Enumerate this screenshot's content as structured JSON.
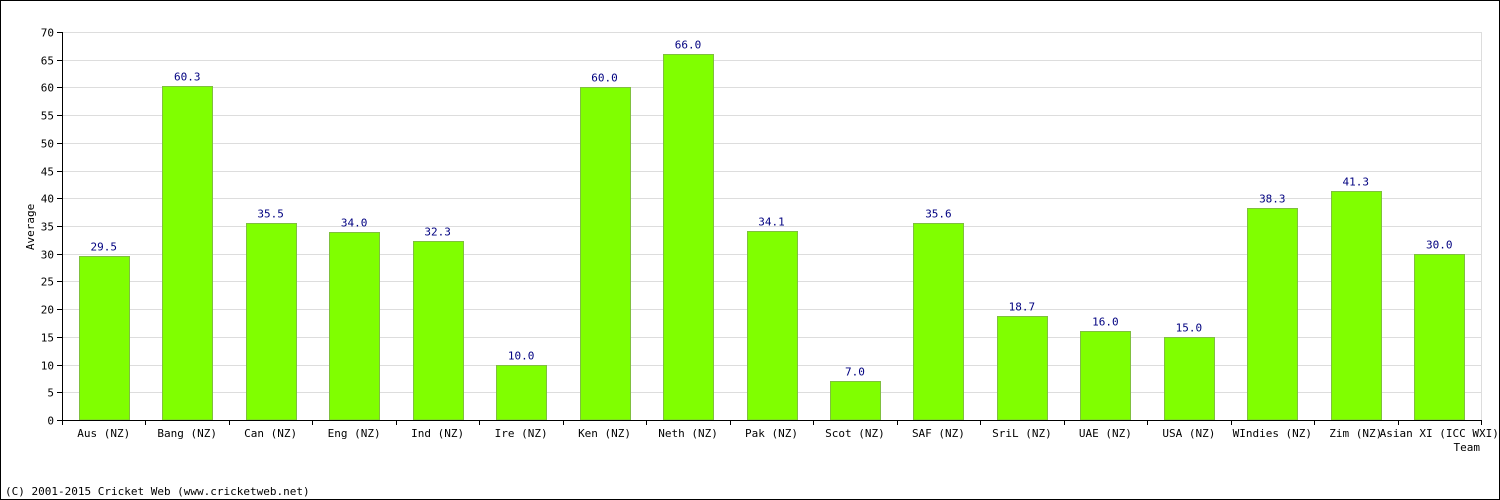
{
  "chart_data": {
    "type": "bar",
    "categories": [
      "Aus (NZ)",
      "Bang (NZ)",
      "Can (NZ)",
      "Eng (NZ)",
      "Ind (NZ)",
      "Ire (NZ)",
      "Ken (NZ)",
      "Neth (NZ)",
      "Pak (NZ)",
      "Scot (NZ)",
      "SAF (NZ)",
      "SriL (NZ)",
      "UAE (NZ)",
      "USA (NZ)",
      "WIndies (NZ)",
      "Zim (NZ)",
      "Asian XI (ICC WXI)"
    ],
    "values": [
      29.5,
      60.3,
      35.5,
      34.0,
      32.3,
      10.0,
      60.0,
      66.0,
      34.1,
      7.0,
      35.6,
      18.7,
      16.0,
      15.0,
      38.3,
      41.3,
      30.0
    ],
    "value_labels": [
      "29.5",
      "60.3",
      "35.5",
      "34.0",
      "32.3",
      "10.0",
      "60.0",
      "66.0",
      "34.1",
      "7.0",
      "35.6",
      "18.7",
      "16.0",
      "15.0",
      "38.3",
      "41.3",
      "30.0"
    ],
    "ylabel": "Average",
    "xlabel": "Team",
    "ylim": [
      0,
      70
    ],
    "yticks": [
      0,
      5,
      10,
      15,
      20,
      25,
      30,
      35,
      40,
      45,
      50,
      55,
      60,
      65,
      70
    ],
    "grid": true,
    "colors": {
      "bar": "#80ff00",
      "bar_edge": "#7fbf3f",
      "data_label": "#000080",
      "grid": "#dddddd",
      "axis": "#000000"
    }
  },
  "footer": {
    "text": "(C) 2001-2015 Cricket Web (www.cricketweb.net)"
  }
}
